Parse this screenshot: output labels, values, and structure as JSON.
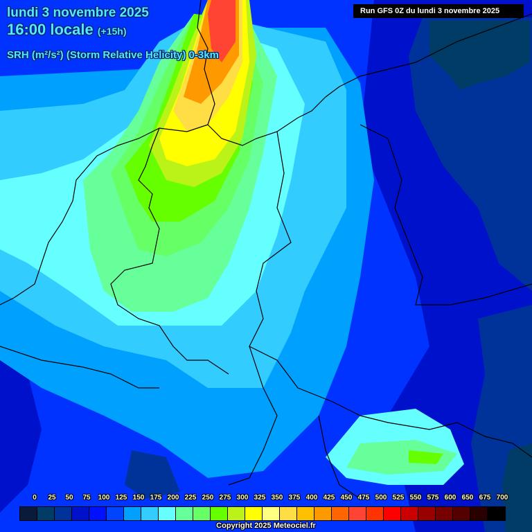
{
  "header": {
    "date": "lundi 3 novembre 2025",
    "time": "16:00 locale",
    "offset": "(+15h)",
    "parameter": "SRH (m²/s²) (Storm Relative Helicity) 0-3km"
  },
  "run_info": "Run GFS 0Z du lundi 3 novembre 2025",
  "copyright": "Copyright 2025 Meteociel.fr",
  "legend": {
    "labels": [
      "0",
      "25",
      "50",
      "75",
      "100",
      "125",
      "150",
      "175",
      "200",
      "225",
      "250",
      "275",
      "300",
      "325",
      "350",
      "375",
      "400",
      "425",
      "450",
      "475",
      "500",
      "525",
      "550",
      "575",
      "600",
      "650",
      "675",
      "700"
    ],
    "colors": [
      "#0a1a3a",
      "#003c66",
      "#003399",
      "#0011cc",
      "#0011ff",
      "#0044ff",
      "#00a0ff",
      "#33ccff",
      "#66ffff",
      "#66ff99",
      "#66ff66",
      "#66ff00",
      "#bbf218",
      "#ffff00",
      "#ffff80",
      "#ffdd44",
      "#ffc000",
      "#ff9900",
      "#ff6600",
      "#ff4433",
      "#ff3300",
      "#ff0000",
      "#cc0000",
      "#990000",
      "#770000",
      "#550000",
      "#2a0000",
      "#000000"
    ]
  },
  "map": {
    "region": "Western/Central Europe",
    "field_colors": {
      "very_low": "#003c66",
      "low_dark": "#003399",
      "low": "#0011cc",
      "low_mid": "#0044ff",
      "mid_low": "#00a0ff",
      "mid": "#33ccff",
      "mid_high": "#66ffff",
      "green_light": "#66ff99",
      "green": "#66ff66",
      "lime": "#66ff00",
      "yellow_green": "#bbf218",
      "yellow": "#ffff00",
      "light_yellow": "#ffff80",
      "gold": "#ffdd44",
      "orange": "#ff9900",
      "orange_red": "#ff6600",
      "red": "#ff3300"
    }
  }
}
